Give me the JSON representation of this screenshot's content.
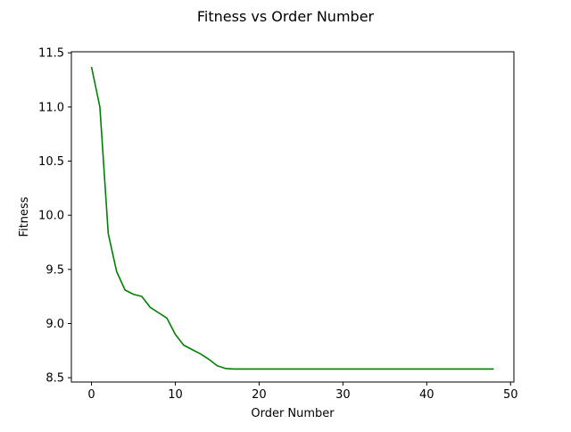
{
  "chart_data": {
    "type": "line",
    "title": "Fitness vs Order Number",
    "xlabel": "Order Number",
    "ylabel": "Fitness",
    "xlim": [
      -2.4,
      50.4
    ],
    "ylim": [
      8.46,
      11.51
    ],
    "xticks": [
      0,
      10,
      20,
      30,
      40,
      50
    ],
    "yticks": [
      8.5,
      9.0,
      9.5,
      10.0,
      10.5,
      11.0,
      11.5
    ],
    "xtick_labels": [
      "0",
      "10",
      "20",
      "30",
      "40",
      "50"
    ],
    "ytick_labels": [
      "8.5",
      "9.0",
      "9.5",
      "10.0",
      "10.5",
      "11.0",
      "11.5"
    ],
    "grid": false,
    "series": [
      {
        "color": "#008000",
        "x": [
          0,
          1,
          2,
          3,
          4,
          5,
          6,
          7,
          8,
          9,
          10,
          11,
          12,
          13,
          14,
          15,
          16,
          17,
          18,
          19,
          20,
          21,
          22,
          23,
          24,
          25,
          26,
          27,
          28,
          29,
          30,
          31,
          32,
          33,
          34,
          35,
          36,
          37,
          38,
          39,
          40,
          41,
          42,
          43,
          44,
          45,
          46,
          47,
          48
        ],
        "y": [
          11.37,
          11.0,
          9.83,
          9.48,
          9.31,
          9.27,
          9.25,
          9.15,
          9.1,
          9.05,
          8.9,
          8.8,
          8.76,
          8.72,
          8.67,
          8.61,
          8.585,
          8.58,
          8.58,
          8.58,
          8.58,
          8.58,
          8.58,
          8.58,
          8.58,
          8.58,
          8.58,
          8.58,
          8.58,
          8.58,
          8.58,
          8.58,
          8.58,
          8.58,
          8.58,
          8.58,
          8.58,
          8.58,
          8.58,
          8.58,
          8.58,
          8.58,
          8.58,
          8.58,
          8.58,
          8.58,
          8.58,
          8.58,
          8.58
        ]
      }
    ]
  }
}
